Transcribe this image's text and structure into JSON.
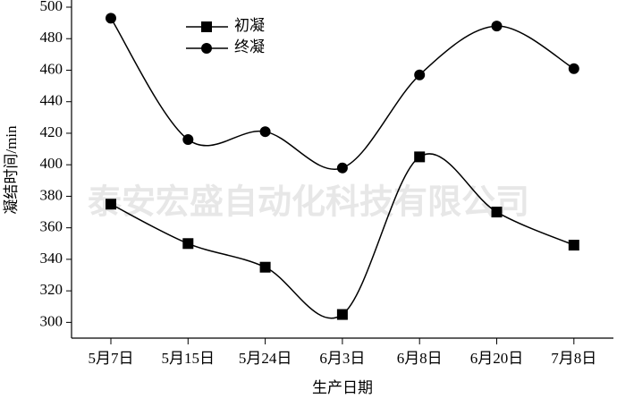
{
  "chart_data": {
    "type": "line",
    "ylabel": "凝结时间/min",
    "xlabel": "生产日期",
    "watermark": "泰安宏盛自动化科技有限公司",
    "categories": [
      "5月7日",
      "5月15日",
      "5月24日",
      "6月3日",
      "6月8日",
      "6月20日",
      "7月8日"
    ],
    "series": [
      {
        "name": "初凝",
        "color": "#000000",
        "marker": "square",
        "values": [
          375,
          350,
          335,
          305,
          405,
          370,
          349
        ]
      },
      {
        "name": "终凝",
        "color": "#000000",
        "marker": "circle",
        "values": [
          493,
          416,
          421,
          398,
          457,
          488,
          461
        ]
      }
    ],
    "ylim": [
      290,
      500
    ],
    "yticks": [
      300,
      320,
      340,
      360,
      380,
      400,
      420,
      440,
      460,
      480,
      500
    ],
    "smooth": true,
    "legend": "top-left"
  }
}
